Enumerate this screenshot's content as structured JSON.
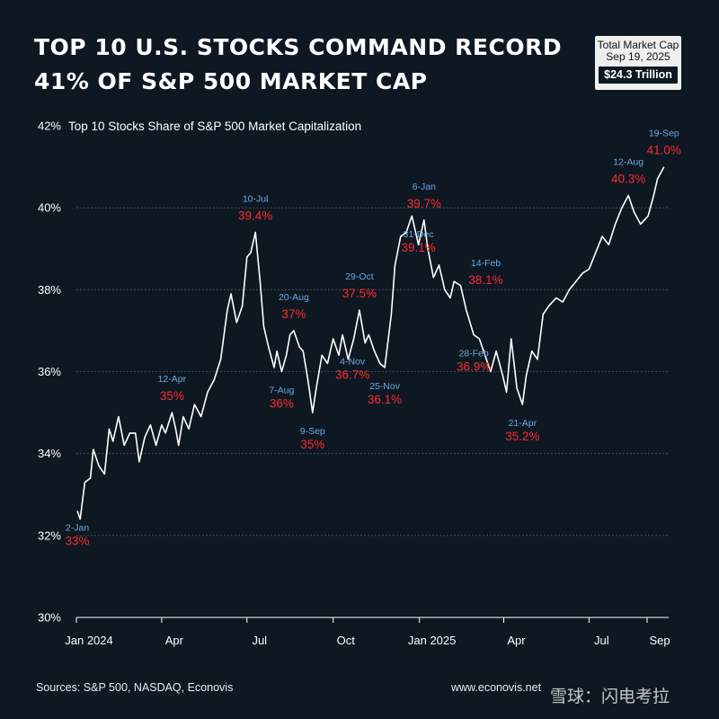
{
  "header": {
    "title_line1": "TOP 10 U.S. STOCKS COMMAND RECORD",
    "title_line2": "41% OF S&P 500 MARKET CAP"
  },
  "market_cap_box": {
    "label": "Total Market Cap",
    "date": "Sep 19, 2025",
    "value": "$24.3 Trillion"
  },
  "footer": {
    "sources": "Sources: S&P 500, NASDAQ, Econovis",
    "website": "www.econovis.net",
    "watermark": "雪球：闪电考拉"
  },
  "colors": {
    "background": "#0d1823",
    "line": "#ffffff",
    "date_label": "#6fa8dc",
    "value_label": "#ff2a2a"
  },
  "chart_data": {
    "type": "line",
    "title": "Top 10 Stocks Share of S&P 500 Market Capitalization",
    "xlabel": "",
    "ylabel": "",
    "ylim": [
      30,
      42
    ],
    "grid": true,
    "y_ticks": [
      "30%",
      "32%",
      "34%",
      "36%",
      "38%",
      "40%",
      "42%"
    ],
    "y_tick_values": [
      30,
      32,
      34,
      36,
      38,
      40,
      42
    ],
    "x_ticks": [
      "Jan 2024",
      "Apr",
      "Jul",
      "Oct",
      "Jan 2025",
      "Apr",
      "Jul",
      "Sep"
    ],
    "x_tick_dates": [
      "2024-01-01",
      "2024-04-01",
      "2024-07-01",
      "2024-10-01",
      "2025-01-01",
      "2025-04-01",
      "2025-07-01",
      "2025-09-01"
    ],
    "x_range": [
      "2024-01-01",
      "2025-09-24"
    ],
    "series": [
      {
        "name": "Top 10 share",
        "x": [
          "2024-01-02",
          "2024-01-05",
          "2024-01-10",
          "2024-01-16",
          "2024-01-19",
          "2024-01-25",
          "2024-01-31",
          "2024-02-05",
          "2024-02-09",
          "2024-02-15",
          "2024-02-21",
          "2024-02-27",
          "2024-03-04",
          "2024-03-08",
          "2024-03-14",
          "2024-03-20",
          "2024-03-26",
          "2024-04-01",
          "2024-04-05",
          "2024-04-12",
          "2024-04-16",
          "2024-04-19",
          "2024-04-24",
          "2024-04-30",
          "2024-05-06",
          "2024-05-13",
          "2024-05-20",
          "2024-05-27",
          "2024-06-03",
          "2024-06-10",
          "2024-06-14",
          "2024-06-20",
          "2024-06-26",
          "2024-07-01",
          "2024-07-05",
          "2024-07-10",
          "2024-07-15",
          "2024-07-19",
          "2024-07-24",
          "2024-07-30",
          "2024-08-02",
          "2024-08-07",
          "2024-08-12",
          "2024-08-16",
          "2024-08-20",
          "2024-08-26",
          "2024-08-30",
          "2024-09-04",
          "2024-09-09",
          "2024-09-13",
          "2024-09-19",
          "2024-09-25",
          "2024-10-01",
          "2024-10-07",
          "2024-10-11",
          "2024-10-17",
          "2024-10-23",
          "2024-10-29",
          "2024-11-04",
          "2024-11-08",
          "2024-11-14",
          "2024-11-20",
          "2024-11-25",
          "2024-12-02",
          "2024-12-06",
          "2024-12-12",
          "2024-12-18",
          "2024-12-24",
          "2024-12-31",
          "2025-01-06",
          "2025-01-10",
          "2025-01-16",
          "2025-01-22",
          "2025-01-28",
          "2025-02-03",
          "2025-02-07",
          "2025-02-14",
          "2025-02-20",
          "2025-02-28",
          "2025-03-06",
          "2025-03-12",
          "2025-03-18",
          "2025-03-24",
          "2025-03-31",
          "2025-04-04",
          "2025-04-09",
          "2025-04-15",
          "2025-04-21",
          "2025-04-25",
          "2025-05-01",
          "2025-05-07",
          "2025-05-13",
          "2025-05-19",
          "2025-05-27",
          "2025-06-03",
          "2025-06-10",
          "2025-06-17",
          "2025-06-24",
          "2025-07-01",
          "2025-07-08",
          "2025-07-15",
          "2025-07-22",
          "2025-07-29",
          "2025-08-05",
          "2025-08-12",
          "2025-08-18",
          "2025-08-25",
          "2025-09-02",
          "2025-09-08",
          "2025-09-12",
          "2025-09-19"
        ],
        "values": [
          32.6,
          32.4,
          33.3,
          33.4,
          34.1,
          33.7,
          33.5,
          34.6,
          34.3,
          34.9,
          34.2,
          34.5,
          34.5,
          33.8,
          34.4,
          34.7,
          34.2,
          34.7,
          34.5,
          35.0,
          34.6,
          34.2,
          34.9,
          34.6,
          35.2,
          34.9,
          35.5,
          35.8,
          36.3,
          37.5,
          37.9,
          37.2,
          37.6,
          38.8,
          38.9,
          39.4,
          38.2,
          37.1,
          36.6,
          36.1,
          36.5,
          36.0,
          36.4,
          36.9,
          37.0,
          36.6,
          36.5,
          35.8,
          35.0,
          35.6,
          36.4,
          36.2,
          36.8,
          36.4,
          36.9,
          36.3,
          36.8,
          37.5,
          36.7,
          36.9,
          36.5,
          36.2,
          36.1,
          37.4,
          38.6,
          39.3,
          39.4,
          39.8,
          39.1,
          39.7,
          39.0,
          38.3,
          38.6,
          38.0,
          37.8,
          38.2,
          38.1,
          37.5,
          36.9,
          36.8,
          36.4,
          36.0,
          36.5,
          35.9,
          35.5,
          36.8,
          35.6,
          35.2,
          35.9,
          36.5,
          36.3,
          37.4,
          37.6,
          37.8,
          37.7,
          38.0,
          38.2,
          38.4,
          38.5,
          38.9,
          39.3,
          39.1,
          39.6,
          40.0,
          40.3,
          39.9,
          39.6,
          39.8,
          40.3,
          40.7,
          41.0
        ]
      }
    ],
    "annotations": [
      {
        "date": "2024-01-02",
        "value": 32.6,
        "date_label": "2-Jan",
        "value_label": "33%"
      },
      {
        "date": "2024-04-12",
        "value": 35.0,
        "date_label": "12-Apr",
        "value_label": "35%"
      },
      {
        "date": "2024-07-10",
        "value": 39.4,
        "date_label": "10-Jul",
        "value_label": "39.4%"
      },
      {
        "date": "2024-08-07",
        "value": 36.0,
        "date_label": "7-Aug",
        "value_label": "36%"
      },
      {
        "date": "2024-08-20",
        "value": 37.0,
        "date_label": "20-Aug",
        "value_label": "37%"
      },
      {
        "date": "2024-09-09",
        "value": 35.0,
        "date_label": "9-Sep",
        "value_label": "35%"
      },
      {
        "date": "2024-10-29",
        "value": 37.5,
        "date_label": "29-Oct",
        "value_label": "37.5%"
      },
      {
        "date": "2024-11-04",
        "value": 36.7,
        "date_label": "4-Nov",
        "value_label": "36.7%"
      },
      {
        "date": "2024-11-25",
        "value": 36.1,
        "date_label": "25-Nov",
        "value_label": "36.1%"
      },
      {
        "date": "2024-12-31",
        "value": 39.1,
        "date_label": "31-Dec",
        "value_label": "39.1%"
      },
      {
        "date": "2025-01-06",
        "value": 39.7,
        "date_label": "6-Jan",
        "value_label": "39.7%"
      },
      {
        "date": "2025-02-14",
        "value": 38.1,
        "date_label": "14-Feb",
        "value_label": "38.1%"
      },
      {
        "date": "2025-02-28",
        "value": 36.9,
        "date_label": "28-Feb",
        "value_label": "36.9%"
      },
      {
        "date": "2025-04-21",
        "value": 35.2,
        "date_label": "21-Apr",
        "value_label": "35.2%"
      },
      {
        "date": "2025-08-12",
        "value": 40.3,
        "date_label": "12-Aug",
        "value_label": "40.3%"
      },
      {
        "date": "2025-09-19",
        "value": 41.0,
        "date_label": "19-Sep",
        "value_label": "41.0%"
      }
    ]
  }
}
